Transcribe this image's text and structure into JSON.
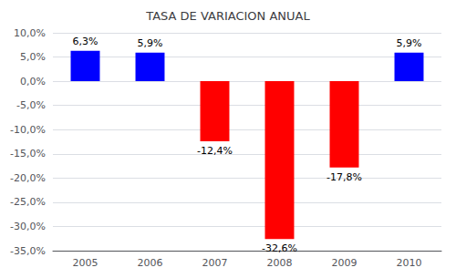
{
  "chart_data": {
    "type": "bar",
    "title": "TASA DE VARIACION ANUAL",
    "categories": [
      "2005",
      "2006",
      "2007",
      "2008",
      "2009",
      "2010"
    ],
    "values": [
      6.3,
      5.9,
      -12.4,
      -32.6,
      -17.8,
      5.9
    ],
    "value_labels": [
      "6,3%",
      "5,9%",
      "-12,4%",
      "-32,6%",
      "-17,8%",
      "5,9%"
    ],
    "colors": [
      "#0000FF",
      "#0000FF",
      "#FF0000",
      "#FF0000",
      "#FF0000",
      "#0000FF"
    ],
    "ylim": [
      -35.0,
      10.0
    ],
    "yticks": [
      {
        "value": 10.0,
        "label": "10,0%"
      },
      {
        "value": 5.0,
        "label": "5,0%"
      },
      {
        "value": 0.0,
        "label": "0,0%"
      },
      {
        "value": -5.0,
        "label": "-5,0%"
      },
      {
        "value": -10.0,
        "label": "-10,0%"
      },
      {
        "value": -15.0,
        "label": "-15,0%"
      },
      {
        "value": -20.0,
        "label": "-20,0%"
      },
      {
        "value": -25.0,
        "label": "-25,0%"
      },
      {
        "value": -30.0,
        "label": "-30,0%"
      },
      {
        "value": -35.0,
        "label": "-35,0%"
      }
    ],
    "grid": true,
    "data_labels": true
  }
}
